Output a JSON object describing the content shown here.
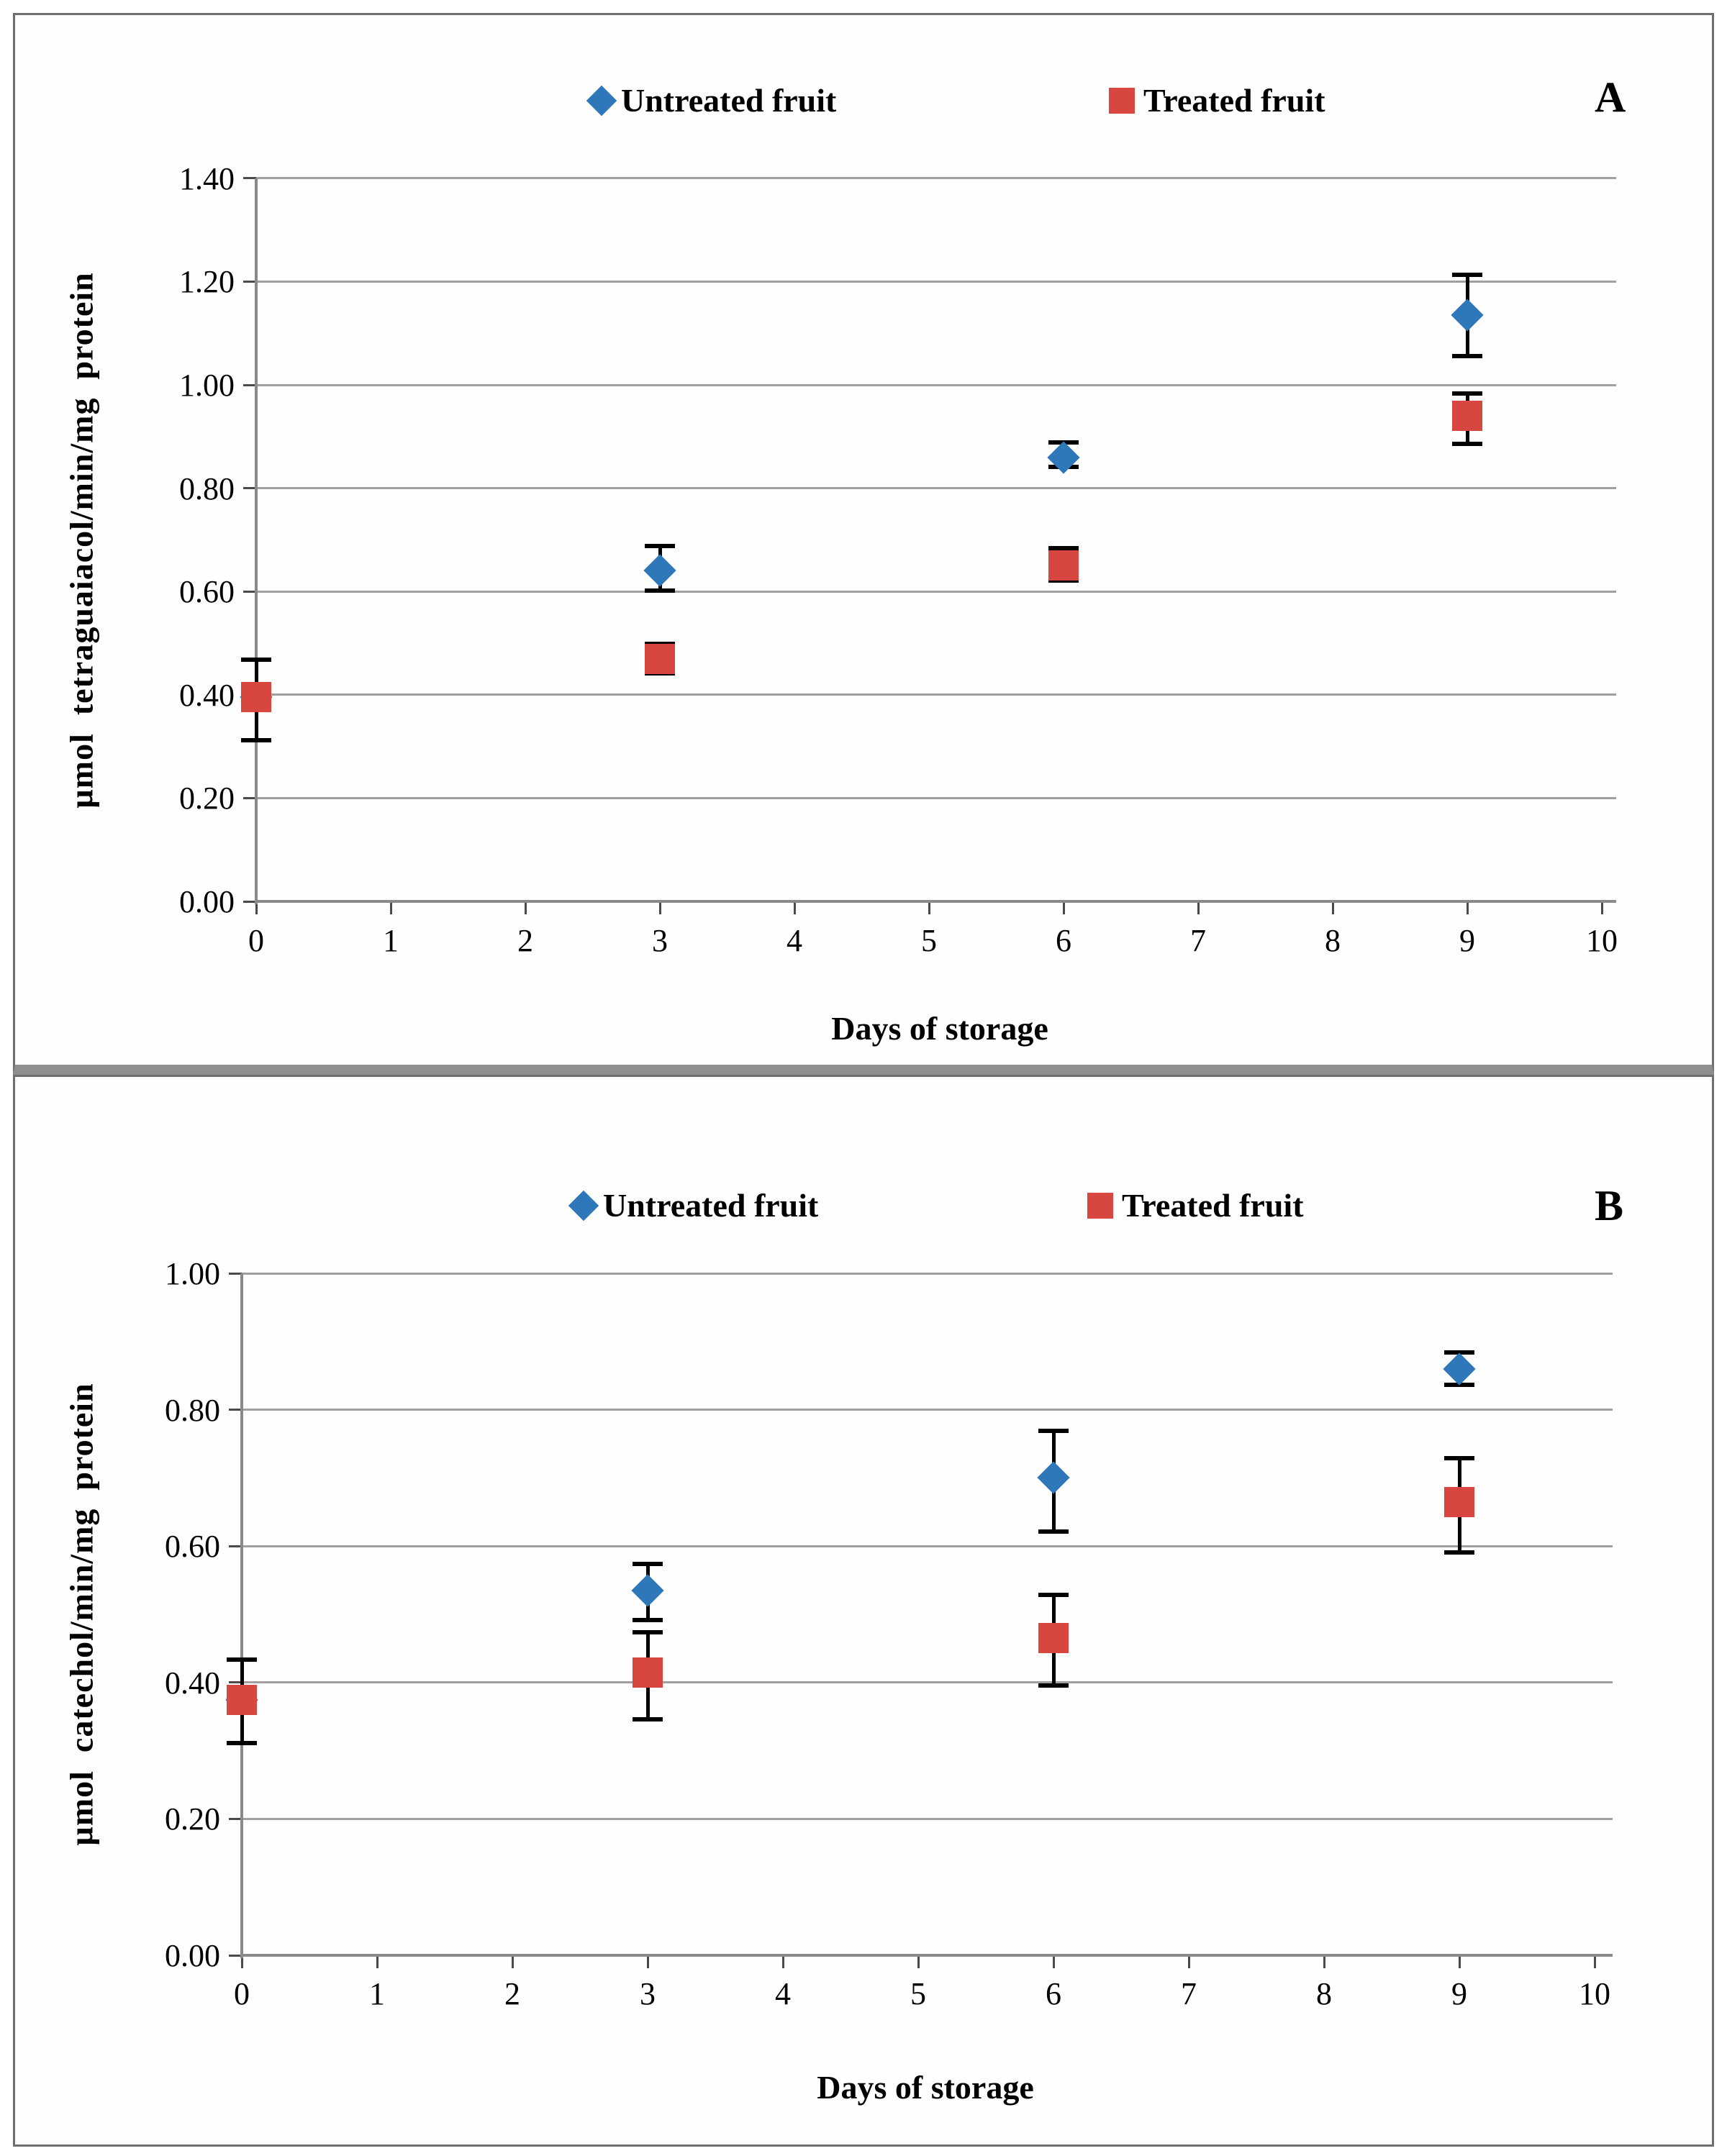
{
  "colors": {
    "untreated": "#2E77B8",
    "treated": "#D7473F",
    "error_bar": "#000000",
    "gridline": "#a0a0a0",
    "axis": "#8a8a8a",
    "panel_border": "#6f6f6f",
    "text": "#000000"
  },
  "chart_data": [
    {
      "type": "scatter",
      "panel_label": "A",
      "xlabel": "Days of storage",
      "ylabel": "µmol  tetraguaiacol/min/mg  protein",
      "xlim": [
        0,
        10
      ],
      "ylim": [
        0.0,
        1.4
      ],
      "x_ticks": [
        "0",
        "1",
        "2",
        "3",
        "4",
        "5",
        "6",
        "7",
        "8",
        "9",
        "10"
      ],
      "y_ticks": [
        "0.00",
        "0.20",
        "0.40",
        "0.60",
        "0.80",
        "1.00",
        "1.20",
        "1.40"
      ],
      "grid": "horizontal-only",
      "legend_position": "top-center",
      "legend": [
        {
          "label": "Untreated fruit",
          "marker": "diamond",
          "color": "#2E77B8"
        },
        {
          "label": "Treated fruit",
          "marker": "square",
          "color": "#D7473F"
        }
      ],
      "series": [
        {
          "name": "Untreated fruit",
          "marker": "diamond",
          "color": "#2E77B8",
          "points": [
            {
              "x": 0,
              "y": 0.395,
              "err": [
                0.31,
                0.47
              ]
            },
            {
              "x": 3,
              "y": 0.64,
              "err": [
                0.6,
                0.69
              ]
            },
            {
              "x": 6,
              "y": 0.86,
              "err": [
                0.84,
                0.89
              ]
            },
            {
              "x": 9,
              "y": 1.135,
              "err": [
                1.055,
                1.215
              ]
            }
          ]
        },
        {
          "name": "Treated fruit",
          "marker": "square",
          "color": "#D7473F",
          "points": [
            {
              "x": 0,
              "y": 0.395,
              "err": [
                0.31,
                0.47
              ]
            },
            {
              "x": 3,
              "y": 0.47,
              "err": [
                0.44,
                0.5
              ]
            },
            {
              "x": 6,
              "y": 0.65,
              "err": [
                0.62,
                0.685
              ]
            },
            {
              "x": 9,
              "y": 0.94,
              "err": [
                0.885,
                0.985
              ]
            }
          ]
        }
      ]
    },
    {
      "type": "scatter",
      "panel_label": "B",
      "xlabel": "Days of storage",
      "ylabel": "µmol  catechol/min/mg  protein",
      "xlim": [
        0,
        10
      ],
      "ylim": [
        0.0,
        1.0
      ],
      "x_ticks": [
        "0",
        "1",
        "2",
        "3",
        "4",
        "5",
        "6",
        "7",
        "8",
        "9",
        "10"
      ],
      "y_ticks": [
        "0.00",
        "0.20",
        "0.40",
        "0.60",
        "0.80",
        "1.00"
      ],
      "grid": "horizontal-only",
      "legend_position": "top-center",
      "legend": [
        {
          "label": "Untreated fruit",
          "marker": "diamond",
          "color": "#2E77B8"
        },
        {
          "label": "Treated fruit",
          "marker": "square",
          "color": "#D7473F"
        }
      ],
      "series": [
        {
          "name": "Untreated fruit",
          "marker": "diamond",
          "color": "#2E77B8",
          "points": [
            {
              "x": 0,
              "y": 0.375,
              "err": [
                0.31,
                0.435
              ]
            },
            {
              "x": 3,
              "y": 0.535,
              "err": [
                0.49,
                0.575
              ]
            },
            {
              "x": 6,
              "y": 0.7,
              "err": [
                0.62,
                0.77
              ]
            },
            {
              "x": 9,
              "y": 0.86,
              "err": [
                0.835,
                0.885
              ]
            }
          ]
        },
        {
          "name": "Treated fruit",
          "marker": "square",
          "color": "#D7473F",
          "points": [
            {
              "x": 0,
              "y": 0.375,
              "err": [
                0.31,
                0.435
              ]
            },
            {
              "x": 3,
              "y": 0.415,
              "err": [
                0.345,
                0.475
              ]
            },
            {
              "x": 6,
              "y": 0.465,
              "err": [
                0.395,
                0.53
              ]
            },
            {
              "x": 9,
              "y": 0.665,
              "err": [
                0.59,
                0.73
              ]
            }
          ]
        }
      ]
    }
  ]
}
